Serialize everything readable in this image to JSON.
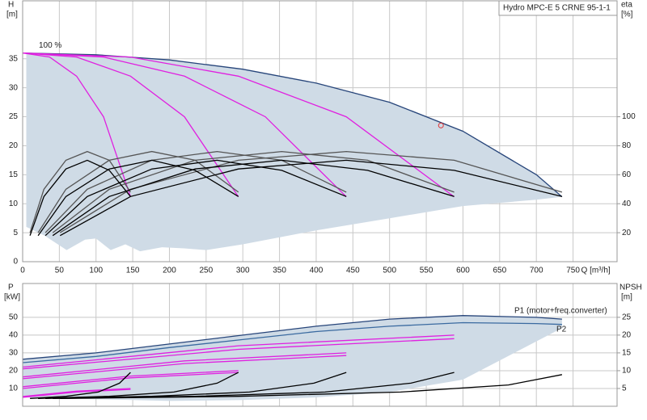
{
  "chart_data": [
    {
      "type": "line",
      "title": "Hydro MPC-E 5 CRNE 95-1-1",
      "ylabel": "H",
      "yunit": "[m]",
      "y2label": "eta",
      "y2unit": "[%]",
      "xlabel": "Q [m³/h]",
      "annotation": "100 %",
      "xlim": [
        0,
        810
      ],
      "xticks": [
        0,
        50,
        100,
        150,
        200,
        250,
        300,
        350,
        400,
        450,
        500,
        550,
        600,
        650,
        700,
        750
      ],
      "ylim": [
        0,
        45
      ],
      "yticks": [
        0,
        5,
        10,
        15,
        20,
        25,
        30,
        35
      ],
      "y2lim": [
        0,
        180
      ],
      "y2ticks": [
        20,
        40,
        60,
        80,
        100
      ],
      "grid": true,
      "areas": [
        {
          "color": "#cfdbe6",
          "x": [
            5,
            100,
            200,
            300,
            400,
            500,
            600,
            700,
            735,
            700,
            600,
            500,
            400,
            300,
            250,
            220,
            190,
            160,
            140,
            120,
            100,
            85,
            60,
            30,
            5
          ],
          "values": [
            36,
            35.7,
            34.8,
            33.2,
            30.8,
            27.5,
            22.5,
            15,
            11.2,
            10.7,
            9.6,
            7.5,
            5.4,
            3,
            2,
            2.3,
            2.5,
            1.8,
            3,
            2,
            4,
            3.8,
            2,
            4.5,
            6
          ]
        }
      ],
      "series": [
        {
          "color": "#27457a",
          "x": [
            0,
            100,
            200,
            300,
            400,
            500,
            600,
            700,
            735
          ],
          "values": [
            36,
            35.7,
            34.8,
            33.2,
            30.8,
            27.5,
            22.5,
            15,
            11.2
          ]
        },
        {
          "color": "#e020e0",
          "x": [
            0,
            36.75,
            73.5,
            110.25,
            147
          ],
          "values": [
            36,
            35.3,
            32,
            25,
            11.2
          ]
        },
        {
          "color": "#e020e0",
          "x": [
            0,
            73.5,
            147,
            220.5,
            294
          ],
          "values": [
            36,
            35.3,
            32,
            25,
            11.2
          ]
        },
        {
          "color": "#e020e0",
          "x": [
            0,
            110.25,
            220.5,
            330.75,
            441
          ],
          "values": [
            36,
            35.3,
            32,
            25,
            11.2
          ]
        },
        {
          "color": "#e020e0",
          "x": [
            0,
            147,
            294,
            441,
            588
          ],
          "values": [
            36,
            35.3,
            32,
            25,
            11.2
          ]
        },
        {
          "color": "#555555",
          "axis": "y2",
          "x": [
            10,
            29,
            59,
            88,
            118,
            147
          ],
          "values": [
            20,
            50,
            70,
            76,
            70,
            48
          ]
        },
        {
          "color": "#555555",
          "axis": "y2",
          "x": [
            21,
            59,
            118,
            176,
            235,
            294
          ],
          "values": [
            20,
            50,
            70,
            76,
            70,
            48
          ]
        },
        {
          "color": "#555555",
          "axis": "y2",
          "x": [
            31,
            88,
            176,
            265,
            353,
            441
          ],
          "values": [
            20,
            50,
            70,
            76,
            70,
            48
          ]
        },
        {
          "color": "#555555",
          "axis": "y2",
          "x": [
            41,
            118,
            235,
            353,
            470,
            588
          ],
          "values": [
            20,
            50,
            70,
            76,
            70,
            48
          ]
        },
        {
          "color": "#555555",
          "axis": "y2",
          "x": [
            51,
            147,
            294,
            441,
            588,
            735
          ],
          "values": [
            20,
            50,
            70,
            76,
            70,
            48
          ]
        },
        {
          "color": "#000000",
          "axis": "y2",
          "x": [
            10,
            29,
            59,
            88,
            118,
            147
          ],
          "values": [
            18,
            45,
            64,
            70,
            63,
            45
          ]
        },
        {
          "color": "#000000",
          "axis": "y2",
          "x": [
            21,
            59,
            118,
            176,
            235,
            294
          ],
          "values": [
            18,
            45,
            64,
            70,
            63,
            45
          ]
        },
        {
          "color": "#000000",
          "axis": "y2",
          "x": [
            31,
            88,
            176,
            265,
            353,
            441
          ],
          "values": [
            18,
            45,
            64,
            70,
            63,
            45
          ]
        },
        {
          "color": "#000000",
          "axis": "y2",
          "x": [
            41,
            118,
            235,
            353,
            470,
            588
          ],
          "values": [
            18,
            45,
            64,
            70,
            63,
            45
          ]
        },
        {
          "color": "#000000",
          "axis": "y2",
          "x": [
            51,
            147,
            294,
            441,
            588,
            735
          ],
          "values": [
            18,
            45,
            64,
            70,
            63,
            45
          ]
        }
      ],
      "duty_point": {
        "x": 570,
        "y": 23.5,
        "color": "#e03030"
      }
    },
    {
      "type": "line",
      "ylabel": "P",
      "yunit": "[kW]",
      "y2label": "NPSH",
      "y2unit": "[m]",
      "annotations": [
        "P1 (motor+freq.converter)",
        "P2"
      ],
      "xlim": [
        0,
        810
      ],
      "ylim": [
        0,
        69
      ],
      "yticks": [
        10,
        20,
        30,
        40,
        50
      ],
      "y2lim": [
        0,
        34.5
      ],
      "y2ticks": [
        5,
        10,
        15,
        20,
        25
      ],
      "grid": true,
      "areas": [
        {
          "color": "#cfdbe6",
          "x": [
            0,
            100,
            200,
            300,
            400,
            500,
            600,
            700,
            735,
            735,
            600,
            500,
            400,
            300,
            200,
            100,
            0
          ],
          "values": [
            26.4,
            30,
            35,
            40,
            45,
            49,
            51,
            50,
            49,
            44,
            15,
            8,
            5,
            3.5,
            3,
            4,
            5
          ]
        }
      ],
      "series": [
        {
          "color": "#27457a",
          "x": [
            0,
            100,
            200,
            300,
            400,
            500,
            600,
            700,
            735
          ],
          "values": [
            26.4,
            30,
            35,
            40,
            45,
            49,
            51,
            50,
            49
          ]
        },
        {
          "color": "#3a6aa0",
          "x": [
            0,
            100,
            200,
            300,
            400,
            500,
            600,
            700,
            735
          ],
          "values": [
            24.5,
            28,
            33,
            37.5,
            42,
            45,
            47,
            46.5,
            46
          ]
        },
        {
          "color": "#e020e0",
          "x": [
            0,
            73.5,
            147
          ],
          "values": [
            5.5,
            8.5,
            10
          ]
        },
        {
          "color": "#e020e0",
          "x": [
            0,
            73.5,
            147
          ],
          "values": [
            5,
            8,
            9.5
          ]
        },
        {
          "color": "#e020e0",
          "x": [
            0,
            147,
            294
          ],
          "values": [
            11,
            17,
            20
          ]
        },
        {
          "color": "#e020e0",
          "x": [
            0,
            147,
            294
          ],
          "values": [
            10,
            16,
            19
          ]
        },
        {
          "color": "#e020e0",
          "x": [
            0,
            220.5,
            441
          ],
          "values": [
            16.5,
            25.5,
            30
          ]
        },
        {
          "color": "#e020e0",
          "x": [
            0,
            220.5,
            441
          ],
          "values": [
            15.5,
            24,
            28.5
          ]
        },
        {
          "color": "#e020e0",
          "x": [
            0,
            294,
            588
          ],
          "values": [
            22,
            34,
            40
          ]
        },
        {
          "color": "#e020e0",
          "x": [
            0,
            294,
            588
          ],
          "values": [
            21,
            32,
            38
          ]
        },
        {
          "color": "#000000",
          "axis": "y2",
          "x": [
            10,
            59,
            103,
            132,
            147
          ],
          "values": [
            2.2,
            2.8,
            4,
            6.5,
            9.5
          ]
        },
        {
          "color": "#000000",
          "axis": "y2",
          "x": [
            21,
            118,
            206,
            265,
            294
          ],
          "values": [
            2.2,
            2.8,
            4,
            6.5,
            9.5
          ]
        },
        {
          "color": "#000000",
          "axis": "y2",
          "x": [
            31,
            176,
            309,
            397,
            441
          ],
          "values": [
            2.2,
            2.8,
            4,
            6.5,
            9.5
          ]
        },
        {
          "color": "#000000",
          "axis": "y2",
          "x": [
            41,
            235,
            412,
            529,
            588
          ],
          "values": [
            2.2,
            2.8,
            4,
            6.5,
            9.5
          ]
        },
        {
          "color": "#000000",
          "axis": "y2",
          "x": [
            51,
            294,
            515,
            662,
            735
          ],
          "values": [
            2.2,
            2.8,
            4,
            6,
            8.9
          ]
        }
      ]
    }
  ]
}
